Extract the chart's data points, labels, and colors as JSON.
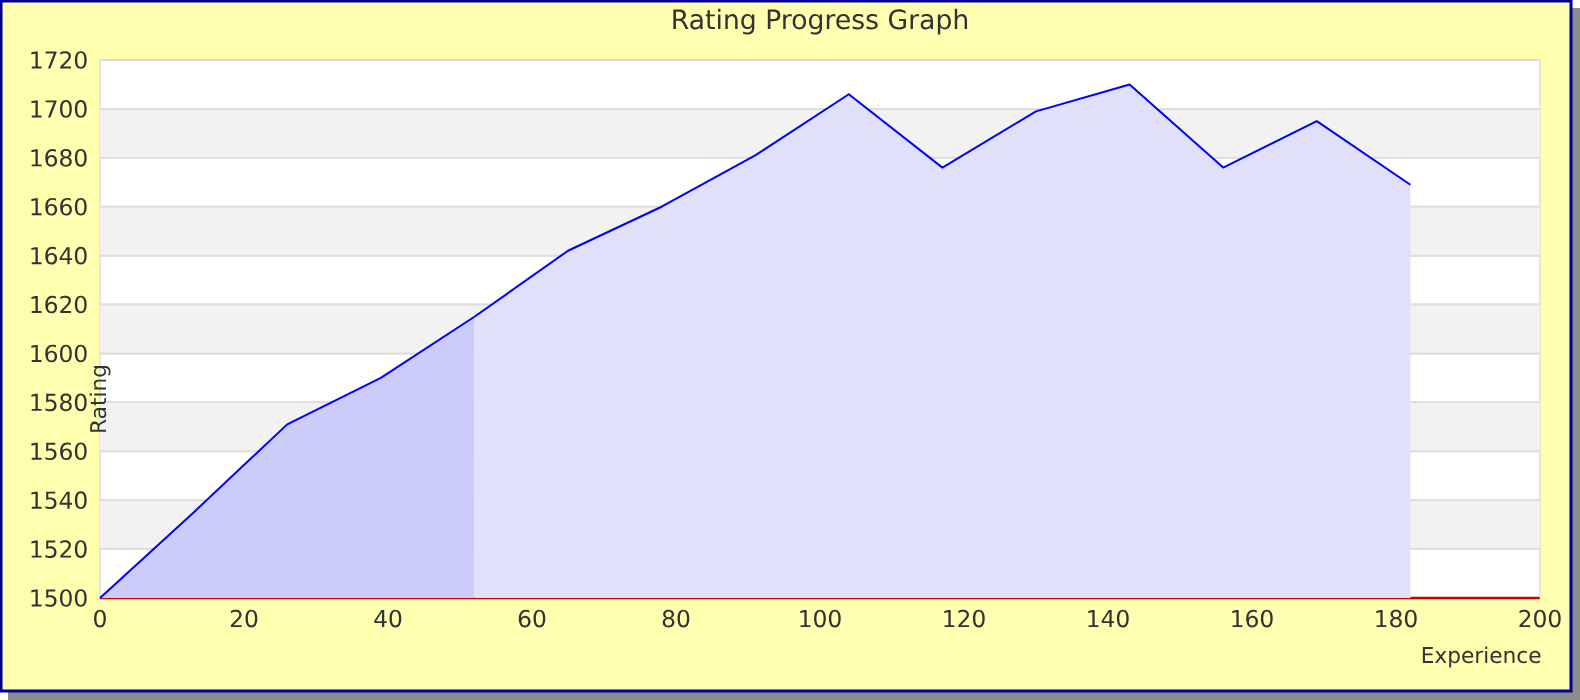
{
  "chart_data": {
    "type": "area",
    "title": "Rating Progress Graph",
    "xlabel": "Experience",
    "ylabel": "Rating",
    "xlim": [
      0,
      200
    ],
    "xticks": [
      0,
      20,
      40,
      60,
      80,
      100,
      120,
      140,
      160,
      180,
      200
    ],
    "ylim": [
      1500,
      1720
    ],
    "yticks": [
      1500,
      1520,
      1540,
      1560,
      1580,
      1600,
      1620,
      1640,
      1660,
      1680,
      1700,
      1720
    ],
    "grid": "y",
    "marker": "none",
    "series": [
      {
        "type": "area",
        "color": "#ccccfa",
        "x": [
          0,
          13,
          26,
          39,
          52
        ],
        "values": [
          1500,
          1535,
          1571,
          1590,
          1615
        ]
      },
      {
        "type": "area",
        "color": "#e0e0fa",
        "x": [
          52,
          65,
          78,
          91,
          104,
          117,
          130,
          143,
          156,
          169,
          182
        ],
        "values": [
          1615,
          1642,
          1660,
          1681,
          1706,
          1676,
          1699,
          1710,
          1676,
          1695,
          1669
        ]
      },
      {
        "type": "line",
        "color": "#0000ff",
        "x": [
          0,
          13,
          26,
          39,
          52,
          65,
          78,
          91,
          104,
          117,
          130,
          143,
          156,
          169,
          182
        ],
        "values": [
          1500,
          1535,
          1571,
          1590,
          1615,
          1642,
          1660,
          1681,
          1706,
          1676,
          1699,
          1710,
          1676,
          1695,
          1669
        ]
      }
    ]
  }
}
